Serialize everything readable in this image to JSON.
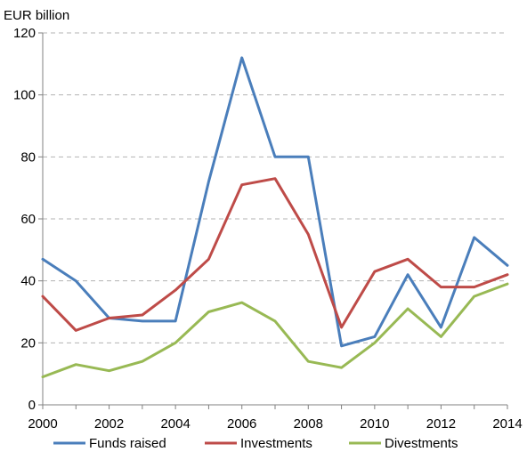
{
  "chart_data": {
    "type": "line",
    "title": "",
    "xlabel": "",
    "ylabel": "EUR billion",
    "x": [
      2000,
      2001,
      2002,
      2003,
      2004,
      2005,
      2006,
      2007,
      2008,
      2009,
      2010,
      2011,
      2012,
      2013,
      2014
    ],
    "xlim": [
      2000,
      2014
    ],
    "x_ticks": [
      2000,
      2002,
      2004,
      2006,
      2008,
      2010,
      2012,
      2014
    ],
    "ylim": [
      0,
      120
    ],
    "y_ticks": [
      0,
      20,
      40,
      60,
      80,
      100,
      120
    ],
    "grid": "horizontal dashed",
    "legend_position": "bottom",
    "series": [
      {
        "name": "Funds raised",
        "color": "#4a7ebb",
        "values": [
          47,
          40,
          28,
          27,
          27,
          72,
          112,
          80,
          80,
          19,
          22,
          42,
          25,
          54,
          45
        ]
      },
      {
        "name": "Investments",
        "color": "#be4b48",
        "values": [
          35,
          24,
          28,
          29,
          37,
          47,
          71,
          73,
          55,
          25,
          43,
          47,
          38,
          38,
          42
        ]
      },
      {
        "name": "Divestments",
        "color": "#98b954",
        "values": [
          9,
          13,
          11,
          14,
          20,
          30,
          33,
          27,
          14,
          12,
          20,
          31,
          22,
          35,
          39
        ]
      }
    ]
  }
}
